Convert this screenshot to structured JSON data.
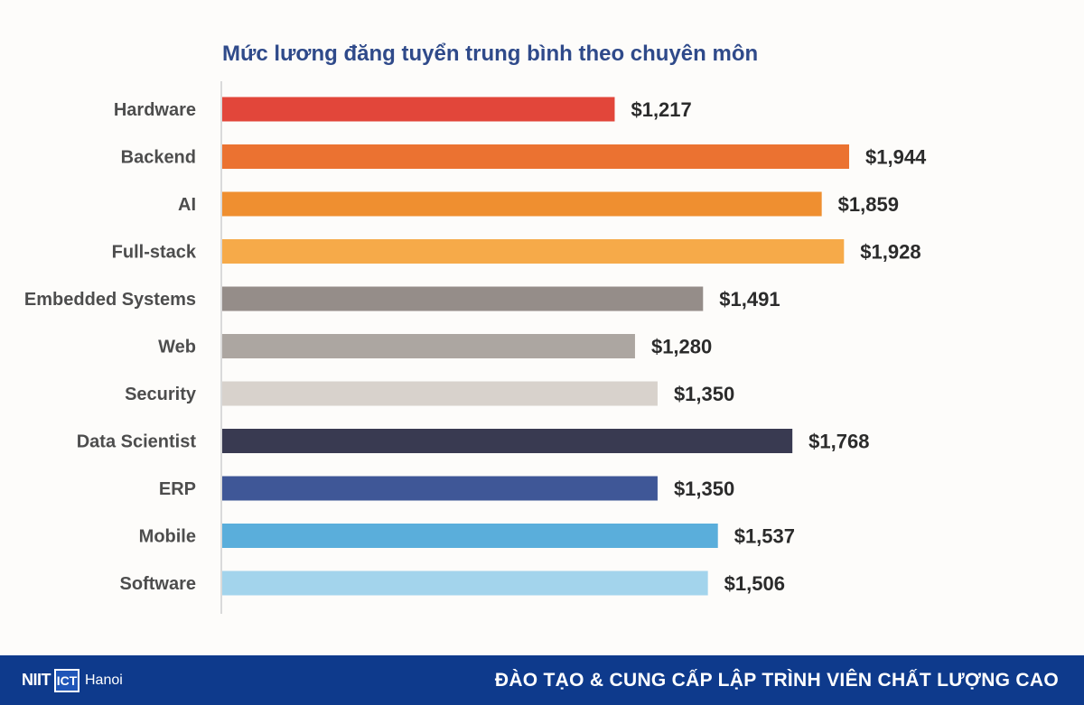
{
  "chart_data": {
    "type": "bar",
    "orientation": "horizontal",
    "title": "Mức lương đăng tuyển trung bình theo chuyên môn",
    "categories": [
      "Hardware",
      "Backend",
      "AI",
      "Full-stack",
      "Embedded Systems",
      "Web",
      "Security",
      "Data Scientist",
      "ERP",
      "Mobile",
      "Software"
    ],
    "values": [
      1217,
      1944,
      1859,
      1928,
      1491,
      1280,
      1350,
      1768,
      1350,
      1537,
      1506
    ],
    "value_labels": [
      "$1,217",
      "$1,944",
      "$1,859",
      "$1,928",
      "$1,491",
      "$1,280",
      "$1,350",
      "$1,768",
      "$1,350",
      "$1,537",
      "$1,506"
    ],
    "colors": [
      "#e2463a",
      "#eb7231",
      "#ef8f30",
      "#f6aa49",
      "#958d89",
      "#aca6a1",
      "#d8d2cc",
      "#393a51",
      "#3f5797",
      "#5aaedb",
      "#a3d4ec"
    ],
    "xlim": [
      0,
      2000
    ],
    "grid": false,
    "legend": "none"
  },
  "footer": {
    "logo_mark": "NIIT",
    "logo_box": "ICT",
    "logo_city": "Hanoi",
    "slogan": "ĐÀO TẠO & CUNG CẤP LẬP TRÌNH VIÊN CHẤT LƯỢNG CAO"
  }
}
